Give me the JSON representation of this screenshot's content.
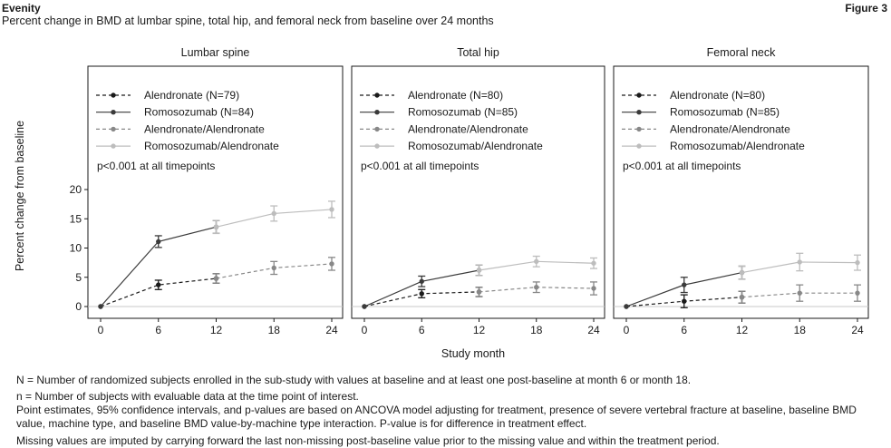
{
  "header": {
    "brand": "Evenity",
    "figure": "Figure 3",
    "subtitle": "Percent change in BMD at lumbar spine, total hip, and femoral neck from baseline over 24 months"
  },
  "chart_data": {
    "type": "line",
    "ylabel": "Percent change from baseline",
    "xlabel": "Study month",
    "x": [
      0,
      6,
      12,
      18,
      24
    ],
    "xticks": [
      "0",
      "6",
      "12",
      "18",
      "24"
    ],
    "ylim": [
      -1,
      21
    ],
    "yticks": [
      0,
      5,
      10,
      15,
      20
    ],
    "colors": {
      "alendronate": "#1a1a1a",
      "romosozumab": "#3a3a3a",
      "alen_alen": "#888888",
      "romo_alen": "#bdbdbd",
      "ref_line": "#c8c8c8"
    },
    "panels": [
      {
        "title": "Lumbar spine",
        "show_yaxis": true,
        "legend": [
          "Alendronate (N=79)",
          "Romosozumab (N=84)",
          "Alendronate/Alendronate",
          "Romosozumab/Alendronate"
        ],
        "pvalue": "p<0.001 at all timepoints",
        "alendronate": {
          "x": [
            0,
            6,
            12
          ],
          "y": [
            0,
            3.7,
            4.8
          ],
          "lo": [
            0,
            2.9,
            4.0
          ],
          "hi": [
            0,
            4.5,
            5.6
          ]
        },
        "romosozumab": {
          "x": [
            0,
            6,
            12
          ],
          "y": [
            0,
            11.1,
            13.6
          ],
          "lo": [
            0,
            10.1,
            12.5
          ],
          "hi": [
            0,
            12.1,
            14.7
          ]
        },
        "alen_alen": {
          "x": [
            12,
            18,
            24
          ],
          "y": [
            4.8,
            6.6,
            7.3
          ],
          "lo": [
            4.0,
            5.5,
            6.2
          ],
          "hi": [
            5.6,
            7.7,
            8.4
          ]
        },
        "romo_alen": {
          "x": [
            12,
            18,
            24
          ],
          "y": [
            13.6,
            15.9,
            16.6
          ],
          "lo": [
            12.5,
            14.6,
            15.2
          ],
          "hi": [
            14.7,
            17.2,
            18.0
          ]
        }
      },
      {
        "title": "Total hip",
        "show_yaxis": false,
        "legend": [
          "Alendronate (N=80)",
          "Romosozumab (N=85)",
          "Alendronate/Alendronate",
          "Romosozumab/Alendronate"
        ],
        "pvalue": "p<0.001 at all timepoints",
        "alendronate": {
          "x": [
            0,
            6,
            12
          ],
          "y": [
            0,
            2.2,
            2.5
          ],
          "lo": [
            0,
            1.5,
            1.7
          ],
          "hi": [
            0,
            2.9,
            3.3
          ]
        },
        "romosozumab": {
          "x": [
            0,
            6,
            12
          ],
          "y": [
            0,
            4.3,
            6.2
          ],
          "lo": [
            0,
            3.4,
            5.3
          ],
          "hi": [
            0,
            5.2,
            7.1
          ]
        },
        "alen_alen": {
          "x": [
            12,
            18,
            24
          ],
          "y": [
            2.5,
            3.3,
            3.1
          ],
          "lo": [
            1.7,
            2.4,
            2.0
          ],
          "hi": [
            3.3,
            4.2,
            4.2
          ]
        },
        "romo_alen": {
          "x": [
            12,
            18,
            24
          ],
          "y": [
            6.2,
            7.7,
            7.4
          ],
          "lo": [
            5.3,
            6.8,
            6.5
          ],
          "hi": [
            7.1,
            8.6,
            8.3
          ]
        }
      },
      {
        "title": "Femoral neck",
        "show_yaxis": false,
        "legend": [
          "Alendronate (N=80)",
          "Romosozumab (N=85)",
          "Alendronate/Alendronate",
          "Romosozumab/Alendronate"
        ],
        "pvalue": "p<0.001 at all timepoints",
        "alendronate": {
          "x": [
            0,
            6,
            12
          ],
          "y": [
            0,
            0.9,
            1.6
          ],
          "lo": [
            0,
            -0.2,
            0.6
          ],
          "hi": [
            0,
            2.0,
            2.6
          ]
        },
        "romosozumab": {
          "x": [
            0,
            6,
            12
          ],
          "y": [
            0,
            3.7,
            5.8
          ],
          "lo": [
            0,
            2.4,
            4.7
          ],
          "hi": [
            0,
            5.0,
            6.9
          ]
        },
        "alen_alen": {
          "x": [
            12,
            18,
            24
          ],
          "y": [
            1.6,
            2.3,
            2.3
          ],
          "lo": [
            0.6,
            0.9,
            0.9
          ],
          "hi": [
            2.6,
            3.7,
            3.7
          ]
        },
        "romo_alen": {
          "x": [
            12,
            18,
            24
          ],
          "y": [
            5.8,
            7.6,
            7.5
          ],
          "lo": [
            4.7,
            6.1,
            6.2
          ],
          "hi": [
            6.9,
            9.1,
            8.8
          ]
        }
      }
    ]
  },
  "footnotes": [
    "N = Number of randomized subjects enrolled in the sub-study with values at baseline and at least one post-baseline at month 6 or month 18.",
    "n = Number of subjects with evaluable data at the time point of interest.",
    "Point estimates, 95% confidence intervals, and p-values are based on ANCOVA model adjusting for treatment, presence of severe vertebral fracture at baseline, baseline BMD value, machine type, and baseline BMD value-by-machine type interaction. P-value is for difference in treatment effect.",
    "Missing values are imputed by carrying forward the last non-missing post-baseline value prior to the missing value and within the treatment period."
  ]
}
